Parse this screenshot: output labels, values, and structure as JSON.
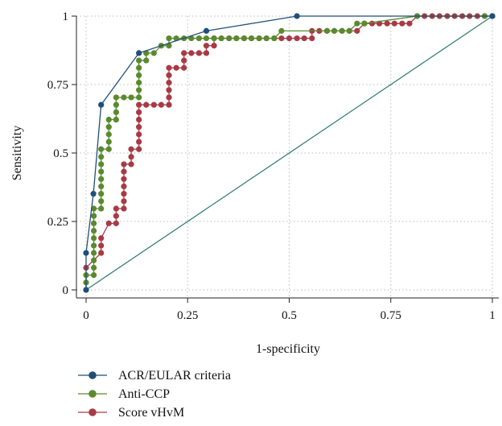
{
  "chart_data": {
    "type": "line",
    "xlabel": "1-specificity",
    "ylabel": "Sensitivity",
    "xlim": [
      0,
      1
    ],
    "ylim": [
      0,
      1
    ],
    "x_ticks": [
      "0",
      "0.25",
      "0.5",
      "0.75",
      "1"
    ],
    "y_ticks": [
      "0",
      "0.25",
      "0.5",
      "0.75",
      "1"
    ],
    "grid": "dotted",
    "legend_position": "bottom-left",
    "reference_line": {
      "from": [
        0,
        0
      ],
      "to": [
        1,
        1
      ],
      "color": "#2e7d6e"
    },
    "series": [
      {
        "name": "ACR/EULAR criteria",
        "color": "#1f4e79",
        "points": [
          [
            0,
            0
          ],
          [
            0,
            0.135
          ],
          [
            0.018,
            0.351
          ],
          [
            0.037,
            0.676
          ],
          [
            0.13,
            0.865
          ],
          [
            0.296,
            0.946
          ],
          [
            0.519,
            1.0
          ],
          [
            1.0,
            1.0
          ]
        ]
      },
      {
        "name": "Anti-CCP",
        "color": "#5a8a2e",
        "points": [
          [
            0,
            0
          ],
          [
            0,
            0.027
          ],
          [
            0,
            0.054
          ],
          [
            0.019,
            0.054
          ],
          [
            0.019,
            0.081
          ],
          [
            0.019,
            0.108
          ],
          [
            0.019,
            0.135
          ],
          [
            0.019,
            0.162
          ],
          [
            0.019,
            0.189
          ],
          [
            0.019,
            0.216
          ],
          [
            0.019,
            0.243
          ],
          [
            0.019,
            0.27
          ],
          [
            0.019,
            0.297
          ],
          [
            0.037,
            0.297
          ],
          [
            0.037,
            0.324
          ],
          [
            0.037,
            0.351
          ],
          [
            0.037,
            0.378
          ],
          [
            0.037,
            0.405
          ],
          [
            0.037,
            0.432
          ],
          [
            0.037,
            0.459
          ],
          [
            0.037,
            0.486
          ],
          [
            0.037,
            0.514
          ],
          [
            0.056,
            0.514
          ],
          [
            0.056,
            0.541
          ],
          [
            0.056,
            0.568
          ],
          [
            0.056,
            0.595
          ],
          [
            0.056,
            0.622
          ],
          [
            0.074,
            0.622
          ],
          [
            0.074,
            0.649
          ],
          [
            0.074,
            0.676
          ],
          [
            0.074,
            0.703
          ],
          [
            0.093,
            0.703
          ],
          [
            0.111,
            0.703
          ],
          [
            0.13,
            0.703
          ],
          [
            0.13,
            0.73
          ],
          [
            0.13,
            0.757
          ],
          [
            0.13,
            0.784
          ],
          [
            0.13,
            0.811
          ],
          [
            0.13,
            0.838
          ],
          [
            0.148,
            0.838
          ],
          [
            0.148,
            0.865
          ],
          [
            0.167,
            0.865
          ],
          [
            0.185,
            0.892
          ],
          [
            0.204,
            0.892
          ],
          [
            0.204,
            0.919
          ],
          [
            0.222,
            0.919
          ],
          [
            0.241,
            0.919
          ],
          [
            0.259,
            0.919
          ],
          [
            0.278,
            0.919
          ],
          [
            0.296,
            0.919
          ],
          [
            0.315,
            0.919
          ],
          [
            0.333,
            0.919
          ],
          [
            0.352,
            0.919
          ],
          [
            0.37,
            0.919
          ],
          [
            0.389,
            0.919
          ],
          [
            0.407,
            0.919
          ],
          [
            0.426,
            0.919
          ],
          [
            0.444,
            0.919
          ],
          [
            0.463,
            0.919
          ],
          [
            0.481,
            0.946
          ],
          [
            0.593,
            0.946
          ],
          [
            0.611,
            0.946
          ],
          [
            0.63,
            0.946
          ],
          [
            0.648,
            0.946
          ],
          [
            0.667,
            0.973
          ],
          [
            0.685,
            0.973
          ],
          [
            0.815,
            1.0
          ],
          [
            0.981,
            1.0
          ],
          [
            1.0,
            1.0
          ]
        ]
      },
      {
        "name": "Score vHvM",
        "color": "#a83a45",
        "points": [
          [
            0,
            0.081
          ],
          [
            0.037,
            0.135
          ],
          [
            0.037,
            0.162
          ],
          [
            0.037,
            0.189
          ],
          [
            0.056,
            0.243
          ],
          [
            0.074,
            0.243
          ],
          [
            0.074,
            0.27
          ],
          [
            0.074,
            0.297
          ],
          [
            0.093,
            0.297
          ],
          [
            0.093,
            0.324
          ],
          [
            0.093,
            0.351
          ],
          [
            0.093,
            0.378
          ],
          [
            0.093,
            0.405
          ],
          [
            0.093,
            0.432
          ],
          [
            0.093,
            0.459
          ],
          [
            0.111,
            0.459
          ],
          [
            0.111,
            0.486
          ],
          [
            0.111,
            0.514
          ],
          [
            0.13,
            0.514
          ],
          [
            0.13,
            0.541
          ],
          [
            0.13,
            0.568
          ],
          [
            0.13,
            0.595
          ],
          [
            0.13,
            0.622
          ],
          [
            0.13,
            0.649
          ],
          [
            0.13,
            0.676
          ],
          [
            0.148,
            0.676
          ],
          [
            0.167,
            0.676
          ],
          [
            0.185,
            0.676
          ],
          [
            0.204,
            0.676
          ],
          [
            0.204,
            0.703
          ],
          [
            0.204,
            0.73
          ],
          [
            0.204,
            0.757
          ],
          [
            0.204,
            0.784
          ],
          [
            0.204,
            0.811
          ],
          [
            0.222,
            0.811
          ],
          [
            0.241,
            0.811
          ],
          [
            0.241,
            0.838
          ],
          [
            0.241,
            0.865
          ],
          [
            0.259,
            0.865
          ],
          [
            0.278,
            0.865
          ],
          [
            0.296,
            0.865
          ],
          [
            0.296,
            0.892
          ],
          [
            0.315,
            0.892
          ],
          [
            0.315,
            0.919
          ],
          [
            0.333,
            0.919
          ],
          [
            0.352,
            0.919
          ],
          [
            0.37,
            0.919
          ],
          [
            0.389,
            0.919
          ],
          [
            0.407,
            0.919
          ],
          [
            0.426,
            0.919
          ],
          [
            0.444,
            0.919
          ],
          [
            0.463,
            0.919
          ],
          [
            0.481,
            0.919
          ],
          [
            0.5,
            0.919
          ],
          [
            0.519,
            0.919
          ],
          [
            0.537,
            0.919
          ],
          [
            0.556,
            0.919
          ],
          [
            0.556,
            0.946
          ],
          [
            0.574,
            0.946
          ],
          [
            0.593,
            0.946
          ],
          [
            0.611,
            0.946
          ],
          [
            0.63,
            0.946
          ],
          [
            0.648,
            0.946
          ],
          [
            0.667,
            0.946
          ],
          [
            0.685,
            0.973
          ],
          [
            0.704,
            0.973
          ],
          [
            0.722,
            0.973
          ],
          [
            0.741,
            0.973
          ],
          [
            0.759,
            0.973
          ],
          [
            0.778,
            0.973
          ],
          [
            0.796,
            0.973
          ],
          [
            0.815,
            1.0
          ],
          [
            0.833,
            1.0
          ],
          [
            0.852,
            1.0
          ],
          [
            0.87,
            1.0
          ],
          [
            0.889,
            1.0
          ],
          [
            0.907,
            1.0
          ],
          [
            0.926,
            1.0
          ],
          [
            0.944,
            1.0
          ],
          [
            0.963,
            1.0
          ],
          [
            0.981,
            1.0
          ],
          [
            1.0,
            1.0
          ]
        ]
      }
    ]
  }
}
